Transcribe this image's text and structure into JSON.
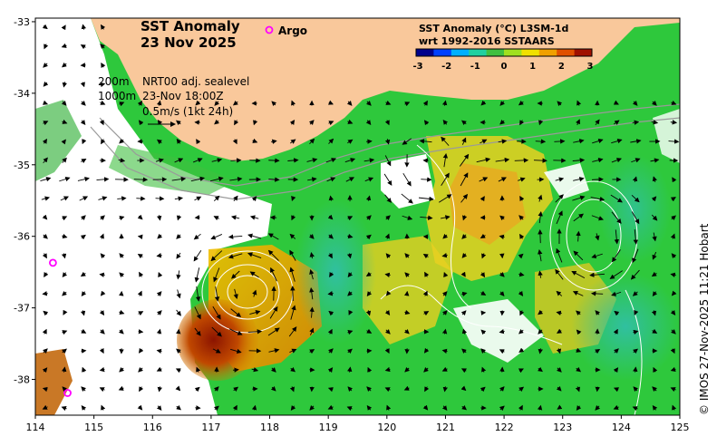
{
  "title": {
    "line1": "SST Anomaly",
    "line2": "23 Nov 2025"
  },
  "legend_marker": {
    "label": "Argo",
    "color": "#ff00ff"
  },
  "colorbar": {
    "title1": "SST Anomaly (°C) L3SM-1d",
    "title2": "wrt 1992-2016 SSTAARS",
    "ticks": [
      "-3",
      "-2",
      "-1",
      "0",
      "1",
      "2",
      "3"
    ],
    "colors": [
      "#00008c",
      "#0040ff",
      "#00b0ff",
      "#20d0a0",
      "#40c040",
      "#a0e020",
      "#f0e000",
      "#f0a000",
      "#e05000",
      "#a01000"
    ]
  },
  "annotations": {
    "depth1": "200m",
    "depth2": "1000m",
    "product": "NRT00 adj. sealevel",
    "time": "23-Nov 18:00Z",
    "scale": "0.5m/s (1kt 24h)"
  },
  "axes": {
    "lon_ticks": [
      "114",
      "115",
      "116",
      "117",
      "118",
      "119",
      "120",
      "121",
      "122",
      "123",
      "124",
      "125"
    ],
    "lat_ticks": [
      "-33",
      "-34",
      "-35",
      "-36",
      "-37",
      "-38"
    ]
  },
  "credit": "© IMOS 27-Nov-2025 11:21 Hobart",
  "colors": {
    "land": "#f9c89b",
    "ocean_base": "#2ec83c",
    "no_data": "#ffffff"
  },
  "argo_floats": [
    {
      "lon": 114.3,
      "lat": -36.37
    },
    {
      "lon": 114.55,
      "lat": -38.19
    },
    {
      "lon": 118.04,
      "lat": -33.17
    }
  ]
}
